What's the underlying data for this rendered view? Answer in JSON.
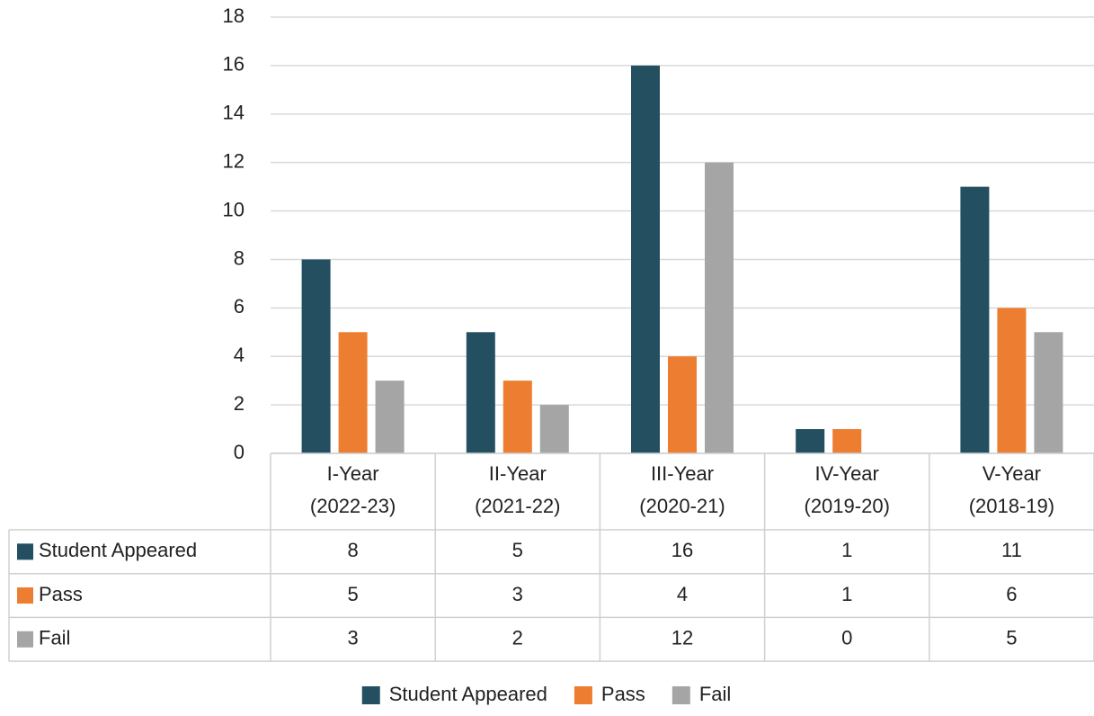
{
  "chart_data": {
    "type": "bar",
    "categories": [
      [
        "I-Year",
        "(2022-23)"
      ],
      [
        "II-Year",
        "(2021-22)"
      ],
      [
        "III-Year",
        "(2020-21)"
      ],
      [
        "IV-Year",
        "(2019-20)"
      ],
      [
        "V-Year",
        "(2018-19)"
      ]
    ],
    "series": [
      {
        "name": "Student Appeared",
        "color": "#234f61",
        "values": [
          8,
          5,
          16,
          1,
          11
        ]
      },
      {
        "name": "Pass",
        "color": "#ed7d31",
        "values": [
          5,
          3,
          4,
          1,
          6
        ]
      },
      {
        "name": "Fail",
        "color": "#a5a5a5",
        "values": [
          3,
          2,
          12,
          0,
          5
        ]
      }
    ],
    "ylim": [
      0,
      18
    ],
    "yticks": [
      0,
      2,
      4,
      6,
      8,
      10,
      12,
      14,
      16,
      18
    ],
    "grid": true,
    "data_table": true,
    "legend": "bottom"
  }
}
